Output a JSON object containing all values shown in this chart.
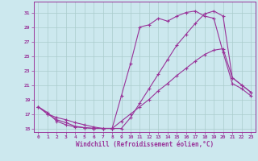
{
  "xlabel": "Windchill (Refroidissement éolien,°C)",
  "bg_color": "#cce8ee",
  "grid_color": "#aacccc",
  "line_color": "#993399",
  "xlim": [
    -0.5,
    23.5
  ],
  "ylim": [
    14.5,
    32.5
  ],
  "xticks": [
    0,
    1,
    2,
    3,
    4,
    5,
    6,
    7,
    8,
    9,
    10,
    11,
    12,
    13,
    14,
    15,
    16,
    17,
    18,
    19,
    20,
    21,
    22,
    23
  ],
  "yticks": [
    15,
    17,
    19,
    21,
    23,
    25,
    27,
    29,
    31
  ],
  "curve1_x": [
    0,
    1,
    2,
    3,
    4,
    5,
    6,
    7,
    8,
    9,
    10,
    11,
    12,
    13,
    14,
    15,
    16,
    17,
    18,
    19,
    20,
    21,
    22,
    23
  ],
  "curve1_y": [
    18.0,
    17.0,
    16.2,
    15.8,
    15.3,
    15.1,
    15.0,
    15.0,
    15.0,
    19.5,
    24.0,
    29.0,
    29.3,
    30.2,
    29.8,
    30.5,
    31.0,
    31.2,
    30.5,
    30.2,
    25.5,
    21.2,
    20.5,
    19.5
  ],
  "curve2_x": [
    0,
    1,
    2,
    3,
    4,
    5,
    6,
    7,
    8,
    9,
    10,
    11,
    12,
    13,
    14,
    15,
    16,
    17,
    18,
    19,
    20,
    21,
    22,
    23
  ],
  "curve2_y": [
    18.0,
    17.2,
    16.0,
    15.5,
    15.2,
    15.1,
    15.0,
    15.0,
    15.0,
    15.0,
    16.5,
    18.5,
    20.5,
    22.5,
    24.5,
    26.5,
    28.0,
    29.5,
    30.8,
    31.2,
    30.5,
    22.0,
    21.0,
    20.0
  ],
  "curve3_x": [
    0,
    1,
    2,
    3,
    4,
    5,
    6,
    7,
    8,
    9,
    10,
    11,
    12,
    13,
    14,
    15,
    16,
    17,
    18,
    19,
    20,
    21,
    22,
    23
  ],
  "curve3_y": [
    18.0,
    17.0,
    16.5,
    16.2,
    15.8,
    15.5,
    15.2,
    15.0,
    15.0,
    16.0,
    17.0,
    18.0,
    19.0,
    20.2,
    21.2,
    22.3,
    23.3,
    24.3,
    25.2,
    25.8,
    26.0,
    22.0,
    21.0,
    20.0
  ]
}
